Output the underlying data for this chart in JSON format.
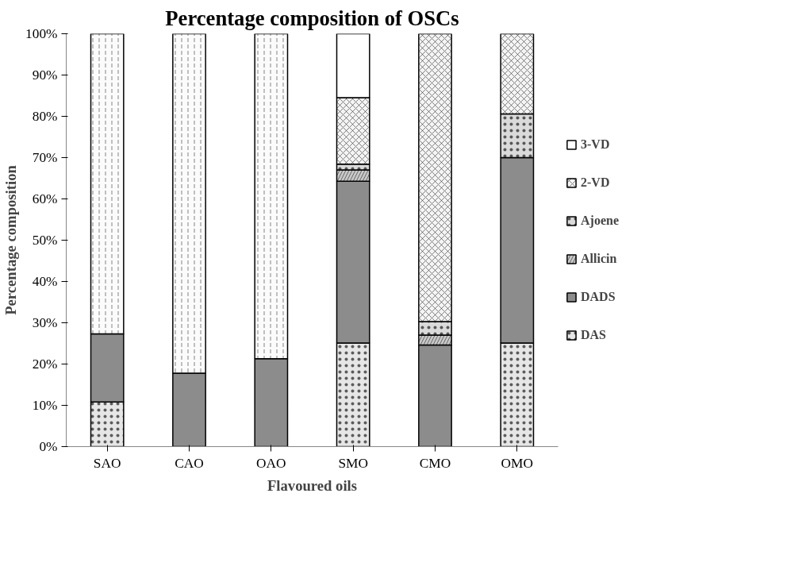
{
  "chart_data": {
    "type": "bar",
    "stacked": true,
    "title": "Percentage composition of OSCs",
    "xlabel": "Flavoured oils",
    "ylabel": "Percentage composition",
    "categories": [
      "SAO",
      "CAO",
      "OAO",
      "SMO",
      "CMO",
      "OMO"
    ],
    "series": [
      {
        "name": "DAS",
        "color": "#e6e6e6",
        "values": [
          10.8,
          null,
          null,
          25.1,
          null,
          25.1
        ]
      },
      {
        "name": "DADS",
        "color": "#8c8c8c",
        "values": [
          16.5,
          17.8,
          21.3,
          39.2,
          24.6,
          44.9
        ]
      },
      {
        "name": "Allicin",
        "color": "#c8c8c8",
        "values": [
          null,
          null,
          null,
          2.7,
          2.4,
          null
        ]
      },
      {
        "name": "Ajoene",
        "color": "#dadada",
        "values": [
          null,
          null,
          null,
          1.4,
          3.3,
          10.6
        ]
      },
      {
        "name": "2-VD",
        "color": "#f4f4f4",
        "values": [
          null,
          null,
          null,
          16.1,
          69.7,
          19.4
        ]
      },
      {
        "name": "3-VD",
        "color": "#ffffff",
        "values": [
          null,
          null,
          null,
          15.5,
          null,
          null
        ]
      },
      {
        "color": "#fbfbfb",
        "values": [
          72.7,
          82.2,
          78.7,
          null,
          null,
          null
        ]
      }
    ],
    "ylim": [
      0,
      100
    ],
    "yticks": [
      {
        "value": 0,
        "label": "0%"
      },
      {
        "value": 10,
        "label": "10%"
      },
      {
        "value": 20,
        "label": "20%"
      },
      {
        "value": 30,
        "label": "30%"
      },
      {
        "value": 40,
        "label": "40%"
      },
      {
        "value": 50,
        "label": "50%"
      },
      {
        "value": 60,
        "label": "60%"
      },
      {
        "value": 70,
        "label": "70%"
      },
      {
        "value": 80,
        "label": "80%"
      },
      {
        "value": 90,
        "label": "90%"
      },
      {
        "value": 100,
        "label": "100%"
      }
    ],
    "legend": "right",
    "grid": false
  }
}
